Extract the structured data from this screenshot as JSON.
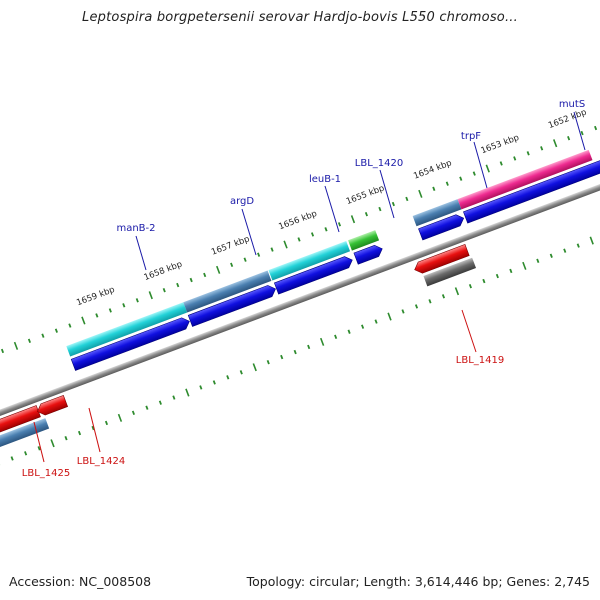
{
  "title": "Leptospira borgpetersenii serovar Hardjo-bovis L550 chromoso...",
  "footer": {
    "accession": "Accession: NC_008508",
    "summary": "Topology: circular; Length: 3,614,446 bp; Genes: 2,745"
  },
  "colors": {
    "background": "#ffffff",
    "backbone": "#8a8a8a",
    "tick": "#2e8b2e",
    "label_forward": "#1a1aa8",
    "label_reverse": "#cc1111",
    "cds": "#1010e0",
    "cyan_gene": "#22d2d8",
    "steelblue_gene": "#4a7fb0",
    "green_gene": "#36c236",
    "magenta_gene": "#ee2a90",
    "red_gene": "#e81010",
    "grey_gene": "#6a6a6a"
  },
  "kbp_labels": [
    "1659 kbp",
    "1658 kbp",
    "1657 kbp",
    "1656 kbp",
    "1655 kbp",
    "1654 kbp",
    "1653 kbp",
    "1652 kbp"
  ],
  "forward_gene_labels": [
    "manB-2",
    "argD",
    "leuB-1",
    "LBL_1420",
    "trpF",
    "mutS"
  ],
  "reverse_gene_labels": [
    "LBL_1419",
    "LBL_1425",
    "LBL_1424"
  ]
}
